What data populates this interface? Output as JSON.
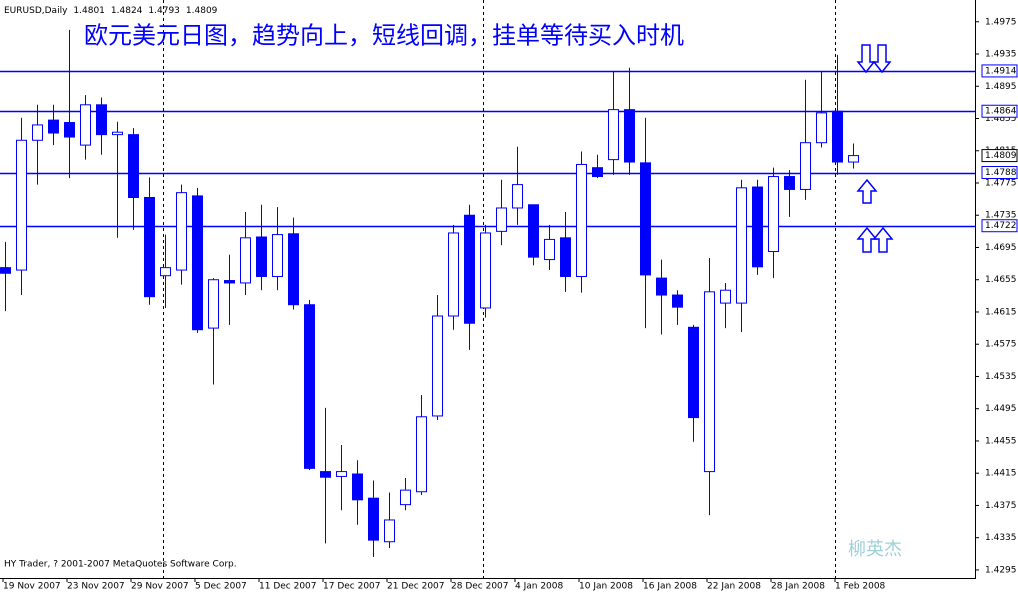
{
  "chart_data": {
    "type": "candlestick",
    "symbol": "EURUSD,Daily",
    "title": "欧元美元日图，趋势向上，短线回调，挂单等待买入时机",
    "copyright": "HY Trader, ? 2001-2007 MetaQuotes Software Corp.",
    "watermark": "柳英杰",
    "categories": [
      "19 Nov 2007",
      null,
      null,
      null,
      "23 Nov 2007",
      null,
      null,
      null,
      "29 Nov 2007",
      null,
      null,
      null,
      "5 Dec 2007",
      null,
      null,
      null,
      "11 Dec 2007",
      null,
      null,
      null,
      "17 Dec 2007",
      null,
      null,
      null,
      "21 Dec 2007",
      null,
      null,
      null,
      "28 Dec 2007",
      null,
      null,
      null,
      "4 Jan 2008",
      null,
      null,
      null,
      "10 Jan 2008",
      null,
      null,
      null,
      "16 Jan 2008",
      null,
      null,
      null,
      "22 Jan 2008",
      null,
      null,
      null,
      "28 Jan 2008",
      null,
      null,
      null,
      "1 Feb 2008",
      null
    ],
    "open": [
      1.467,
      1.4667,
      1.4828,
      1.4853,
      1.485,
      1.4822,
      1.4872,
      1.4835,
      1.4835,
      1.4757,
      1.466,
      1.4667,
      1.4759,
      1.4595,
      1.4654,
      1.4651,
      1.4708,
      1.4659,
      1.4712,
      1.4624,
      1.4417,
      1.4411,
      1.4414,
      1.4384,
      1.433,
      1.4376,
      1.4392,
      1.4486,
      1.461,
      1.4735,
      1.462,
      1.4715,
      1.4744,
      1.4748,
      1.468,
      1.4707,
      1.4659,
      1.4794,
      1.4804,
      1.4866,
      1.48,
      1.4657,
      1.4636,
      1.4596,
      1.4417,
      1.4626,
      1.4626,
      1.477,
      1.469,
      1.4783,
      1.4767,
      1.4825,
      1.4864,
      1.4801
    ],
    "high": [
      1.4702,
      1.4856,
      1.4872,
      1.4872,
      1.4965,
      1.4884,
      1.4881,
      1.4851,
      1.4843,
      1.4782,
      1.4711,
      1.4773,
      1.4769,
      1.4657,
      1.4686,
      1.4739,
      1.4748,
      1.4745,
      1.4732,
      1.463,
      1.4496,
      1.445,
      1.4431,
      1.4406,
      1.4391,
      1.4409,
      1.4512,
      1.4636,
      1.4723,
      1.4748,
      1.4723,
      1.4779,
      1.482,
      1.4748,
      1.4723,
      1.4739,
      1.4814,
      1.481,
      1.4913,
      1.4918,
      1.4856,
      1.468,
      1.4642,
      1.4599,
      1.4682,
      1.4651,
      1.4779,
      1.4779,
      1.4794,
      1.4791,
      1.4903,
      1.4913,
      1.4934,
      1.4824
    ],
    "low": [
      1.4616,
      1.4636,
      1.4773,
      1.4822,
      1.4781,
      1.4804,
      1.481,
      1.4707,
      1.4717,
      1.4624,
      1.462,
      1.4649,
      1.4589,
      1.4525,
      1.4599,
      1.4636,
      1.4642,
      1.4642,
      1.4618,
      1.4419,
      1.4328,
      1.4369,
      1.4351,
      1.4311,
      1.4322,
      1.4369,
      1.4388,
      1.4481,
      1.4593,
      1.4568,
      1.4608,
      1.4698,
      1.4723,
      1.4673,
      1.4667,
      1.464,
      1.4639,
      1.4781,
      1.4785,
      1.4785,
      1.4595,
      1.4587,
      1.4599,
      1.4454,
      1.4363,
      1.4595,
      1.459,
      1.4661,
      1.4657,
      1.4733,
      1.4754,
      1.4819,
      1.4785,
      1.4793
    ],
    "close": [
      1.4663,
      1.4828,
      1.4847,
      1.4837,
      1.4832,
      1.4872,
      1.4835,
      1.4838,
      1.4757,
      1.4634,
      1.467,
      1.4763,
      1.4593,
      1.4655,
      1.4651,
      1.4707,
      1.4659,
      1.4711,
      1.4624,
      1.4421,
      1.441,
      1.4417,
      1.4382,
      1.4332,
      1.4357,
      1.4394,
      1.4485,
      1.461,
      1.4713,
      1.4601,
      1.4713,
      1.4744,
      1.4773,
      1.4683,
      1.4705,
      1.4659,
      1.4798,
      1.4783,
      1.4866,
      1.4801,
      1.4661,
      1.4636,
      1.4621,
      1.4484,
      1.464,
      1.4642,
      1.4769,
      1.4671,
      1.4783,
      1.4767,
      1.4825,
      1.4862,
      1.4801,
      1.4809
    ],
    "color": "#0000ff",
    "hlines": [
      1.4914,
      1.4864,
      1.4788,
      1.4722
    ],
    "ylim": [
      1.4285,
      1.5002
    ],
    "yticks": [
      1.4975,
      1.4935,
      1.4895,
      1.4855,
      1.4815,
      1.4775,
      1.4735,
      1.4695,
      1.4655,
      1.4615,
      1.4575,
      1.4535,
      1.4495,
      1.4455,
      1.4415,
      1.4375,
      1.4335,
      1.4295
    ]
  }
}
